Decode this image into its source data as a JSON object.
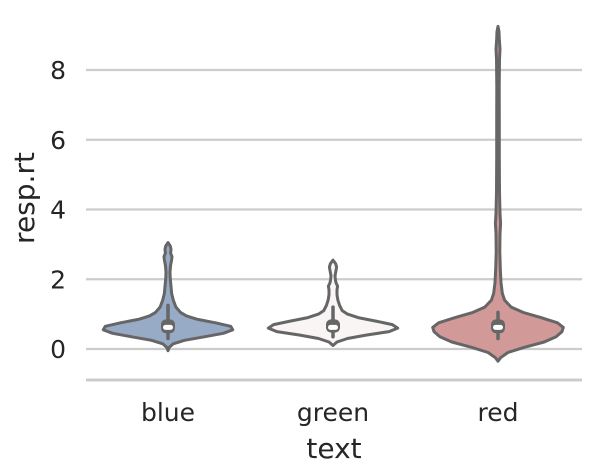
{
  "chart_data": {
    "type": "violin",
    "xlabel": "text",
    "ylabel": "resp.rt",
    "categories": [
      "blue",
      "green",
      "red"
    ],
    "ylim": [
      -0.9,
      9.5
    ],
    "yticks": [
      0,
      2,
      4,
      6,
      8
    ],
    "ytick_labels": [
      "0",
      "2",
      "4",
      "6",
      "8"
    ],
    "grid": "horizontal",
    "series": [
      {
        "category": "blue",
        "color": "#97aac6",
        "min": -0.05,
        "max": 3.05,
        "median": 0.62,
        "q1": 0.45,
        "q3": 0.85,
        "whisker_low": 0.3,
        "whisker_high": 1.25,
        "density": [
          [
            -0.05,
            0.0
          ],
          [
            0.05,
            0.02
          ],
          [
            0.15,
            0.08
          ],
          [
            0.25,
            0.25
          ],
          [
            0.35,
            0.55
          ],
          [
            0.45,
            0.84
          ],
          [
            0.55,
            0.98
          ],
          [
            0.65,
            0.95
          ],
          [
            0.75,
            0.72
          ],
          [
            0.85,
            0.45
          ],
          [
            0.95,
            0.28
          ],
          [
            1.05,
            0.19
          ],
          [
            1.2,
            0.12
          ],
          [
            1.4,
            0.08
          ],
          [
            1.6,
            0.055
          ],
          [
            1.8,
            0.045
          ],
          [
            2.0,
            0.035
          ],
          [
            2.2,
            0.03
          ],
          [
            2.4,
            0.04
          ],
          [
            2.55,
            0.055
          ],
          [
            2.65,
            0.06
          ],
          [
            2.75,
            0.04
          ],
          [
            2.85,
            0.045
          ],
          [
            2.95,
            0.035
          ],
          [
            3.05,
            0.0
          ]
        ]
      },
      {
        "category": "green",
        "color": "#f8f5f4",
        "min": 0.1,
        "max": 2.55,
        "median": 0.62,
        "q1": 0.47,
        "q3": 0.85,
        "whisker_low": 0.35,
        "whisker_high": 1.2,
        "density": [
          [
            0.1,
            0.0
          ],
          [
            0.2,
            0.06
          ],
          [
            0.3,
            0.22
          ],
          [
            0.4,
            0.5
          ],
          [
            0.5,
            0.85
          ],
          [
            0.6,
            0.98
          ],
          [
            0.7,
            0.9
          ],
          [
            0.8,
            0.65
          ],
          [
            0.9,
            0.38
          ],
          [
            1.0,
            0.22
          ],
          [
            1.1,
            0.14
          ],
          [
            1.25,
            0.1
          ],
          [
            1.4,
            0.075
          ],
          [
            1.55,
            0.06
          ],
          [
            1.7,
            0.06
          ],
          [
            1.8,
            0.07
          ],
          [
            1.9,
            0.045
          ],
          [
            2.0,
            0.035
          ],
          [
            2.1,
            0.03
          ],
          [
            2.25,
            0.045
          ],
          [
            2.35,
            0.055
          ],
          [
            2.45,
            0.04
          ],
          [
            2.55,
            0.0
          ]
        ]
      },
      {
        "category": "red",
        "color": "#d19a98",
        "min": -0.35,
        "max": 9.25,
        "median": 0.62,
        "q1": 0.45,
        "q3": 0.85,
        "whisker_low": 0.3,
        "whisker_high": 1.05,
        "density": [
          [
            -0.35,
            0.0
          ],
          [
            -0.25,
            0.04
          ],
          [
            -0.1,
            0.15
          ],
          [
            0.05,
            0.4
          ],
          [
            0.2,
            0.7
          ],
          [
            0.35,
            0.88
          ],
          [
            0.5,
            0.97
          ],
          [
            0.62,
            0.99
          ],
          [
            0.75,
            0.9
          ],
          [
            0.9,
            0.65
          ],
          [
            1.05,
            0.38
          ],
          [
            1.2,
            0.2
          ],
          [
            1.4,
            0.1
          ],
          [
            1.6,
            0.065
          ],
          [
            1.9,
            0.045
          ],
          [
            2.3,
            0.035
          ],
          [
            2.8,
            0.028
          ],
          [
            3.3,
            0.03
          ],
          [
            3.6,
            0.04
          ],
          [
            3.9,
            0.03
          ],
          [
            4.5,
            0.022
          ],
          [
            5.5,
            0.02
          ],
          [
            6.5,
            0.019
          ],
          [
            7.5,
            0.018
          ],
          [
            8.3,
            0.022
          ],
          [
            8.6,
            0.03
          ],
          [
            8.9,
            0.02
          ],
          [
            9.1,
            0.015
          ],
          [
            9.25,
            0.0
          ]
        ]
      }
    ]
  }
}
